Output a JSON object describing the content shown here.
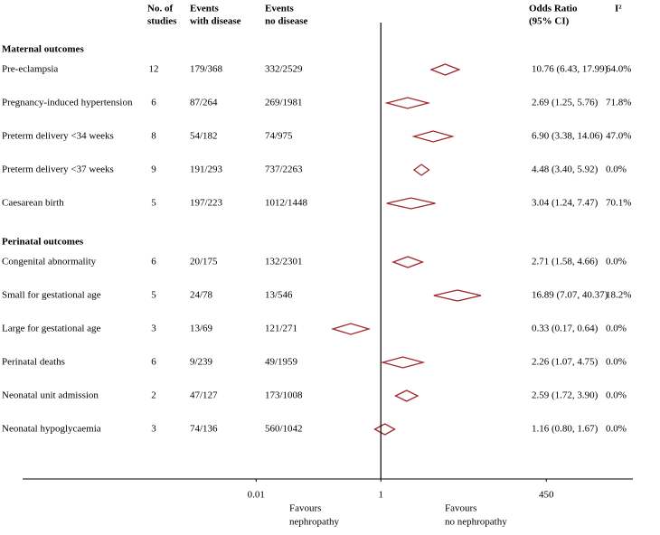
{
  "chart_data": {
    "type": "forest",
    "headers": {
      "studies": [
        "No. of",
        "studies"
      ],
      "with_disease": [
        "Events",
        "with disease"
      ],
      "no_disease": [
        "Events",
        "no disease"
      ],
      "or": [
        "Odds Ratio",
        "(95% CI)"
      ],
      "i2": "I²"
    },
    "sections": [
      {
        "title": "Maternal outcomes",
        "rows": [
          {
            "label": "Pre-eclampsia",
            "studies": 12,
            "with_disease": "179/368",
            "no_disease": "332/2529",
            "or": 10.76,
            "lower": 6.43,
            "upper": 17.99,
            "or_label": "10.76 (6.43, 17.99)",
            "i2": "64.0%"
          },
          {
            "label": "Pregnancy-induced hypertension",
            "studies": 6,
            "with_disease": "87/264",
            "no_disease": "269/1981",
            "or": 2.69,
            "lower": 1.25,
            "upper": 5.76,
            "or_label": "2.69 (1.25, 5.76)",
            "i2": "71.8%"
          },
          {
            "label": "Preterm delivery <34 weeks",
            "studies": 8,
            "with_disease": "54/182",
            "no_disease": "74/975",
            "or": 6.9,
            "lower": 3.38,
            "upper": 14.06,
            "or_label": "6.90 (3.38, 14.06)",
            "i2": "47.0%"
          },
          {
            "label": "Preterm delivery <37 weeks",
            "studies": 9,
            "with_disease": "191/293",
            "no_disease": "737/2263",
            "or": 4.48,
            "lower": 3.4,
            "upper": 5.92,
            "or_label": "4.48 (3.40, 5.92)",
            "i2": "0.0%"
          },
          {
            "label": "Caesarean birth",
            "studies": 5,
            "with_disease": "197/223",
            "no_disease": "1012/1448",
            "or": 3.04,
            "lower": 1.24,
            "upper": 7.47,
            "or_label": "3.04 (1.24, 7.47)",
            "i2": "70.1%"
          }
        ]
      },
      {
        "title": "Perinatal outcomes",
        "rows": [
          {
            "label": "Congenital abnormality",
            "studies": 6,
            "with_disease": "20/175",
            "no_disease": "132/2301",
            "or": 2.71,
            "lower": 1.58,
            "upper": 4.66,
            "or_label": "2.71 (1.58, 4.66)",
            "i2": "0.0%"
          },
          {
            "label": "Small for gestational age",
            "studies": 5,
            "with_disease": "24/78",
            "no_disease": "13/546",
            "or": 16.89,
            "lower": 7.07,
            "upper": 40.37,
            "or_label": "16.89 (7.07, 40.37)",
            "i2": "18.2%"
          },
          {
            "label": "Large for gestational age",
            "studies": 3,
            "with_disease": "13/69",
            "no_disease": "121/271",
            "or": 0.33,
            "lower": 0.17,
            "upper": 0.64,
            "or_label": "0.33 (0.17, 0.64)",
            "i2": "0.0%"
          },
          {
            "label": "Perinatal deaths",
            "studies": 6,
            "with_disease": "9/239",
            "no_disease": "49/1959",
            "or": 2.26,
            "lower": 1.07,
            "upper": 4.75,
            "or_label": "2.26 (1.07, 4.75)",
            "i2": "0.0%"
          },
          {
            "label": "Neonatal unit admission",
            "studies": 2,
            "with_disease": "47/127",
            "no_disease": "173/1008",
            "or": 2.59,
            "lower": 1.72,
            "upper": 3.9,
            "or_label": "2.59 (1.72, 3.90)",
            "i2": "0.0%"
          },
          {
            "label": "Neonatal hypoglycaemia",
            "studies": 3,
            "with_disease": "74/136",
            "no_disease": "560/1042",
            "or": 1.16,
            "lower": 0.8,
            "upper": 1.67,
            "or_label": "1.16 (0.80, 1.67)",
            "i2": "0.0%"
          }
        ]
      }
    ],
    "log_scale": true,
    "xlim": [
      1.8e-06,
      11000
    ],
    "xticks": [
      0.01,
      1,
      450
    ],
    "reference": 1,
    "favours_left": [
      "Favours",
      "nephropathy"
    ],
    "favours_right": [
      "Favours",
      "no nephropathy"
    ],
    "color": "#a0282d"
  }
}
